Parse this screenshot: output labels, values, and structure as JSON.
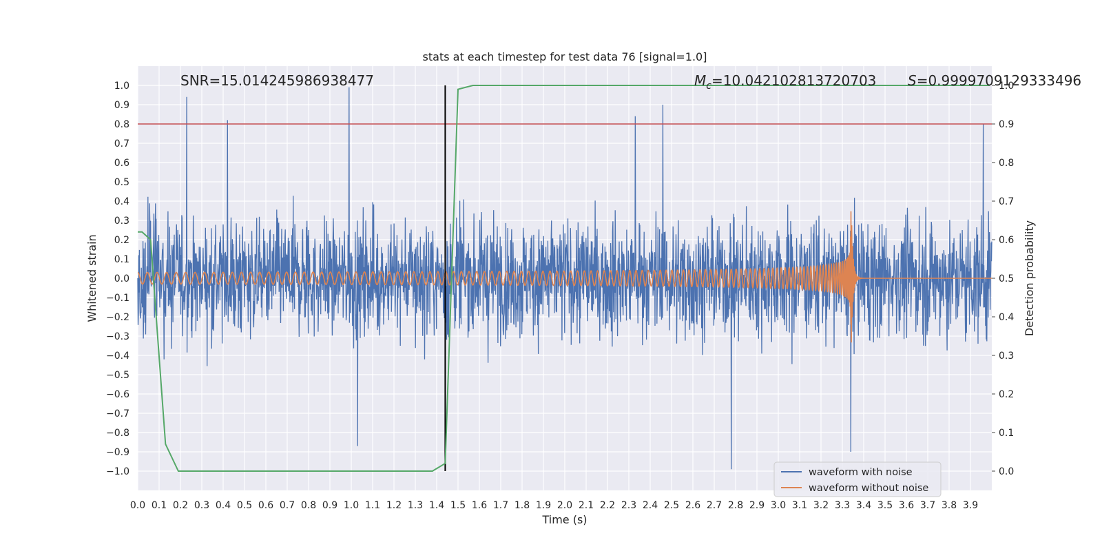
{
  "chart_data": {
    "type": "line",
    "title": "stats at each timestep for test data 76 [signal=1.0]",
    "xlabel": "Time (s)",
    "ylabel": "Whitened strain",
    "y2label": "Detection probability",
    "xlim": [
      0.0,
      4.0
    ],
    "ylim": [
      -1.1,
      1.1
    ],
    "y2lim": [
      -0.05,
      1.05
    ],
    "x_ticks": [
      0.0,
      0.1,
      0.2,
      0.3,
      0.4,
      0.5,
      0.6,
      0.7,
      0.8,
      0.9,
      1.0,
      1.1,
      1.2,
      1.3,
      1.4,
      1.5,
      1.6,
      1.7,
      1.8,
      1.9,
      2.0,
      2.1,
      2.2,
      2.3,
      2.4,
      2.5,
      2.6,
      2.7,
      2.8,
      2.9,
      3.0,
      3.1,
      3.2,
      3.3,
      3.4,
      3.5,
      3.6,
      3.7,
      3.8,
      3.9
    ],
    "y_ticks": [
      1.0,
      0.9,
      0.8,
      0.7,
      0.6,
      0.5,
      0.4,
      0.3,
      0.2,
      0.1,
      0.0,
      -0.1,
      -0.2,
      -0.3,
      -0.4,
      -0.5,
      -0.6,
      -0.7,
      -0.8,
      -0.9,
      -1.0
    ],
    "y2_ticks": [
      1.0,
      0.9,
      0.8,
      0.7,
      0.6,
      0.5,
      0.4,
      0.3,
      0.2,
      0.1,
      0.0
    ],
    "grid": true,
    "annotations": {
      "snr": "SNR=15.014245986938477",
      "mc_symbol": "M",
      "mc_sub": "c",
      "mc_value": "=10.042102813720703",
      "s_symbol": "S",
      "s_value": "=0.9999709129333496"
    },
    "threshold_line": {
      "y2": 0.9,
      "color": "#c44e52"
    },
    "vertical_line": {
      "x": 1.44,
      "y_range": [
        -1.0,
        1.0
      ],
      "color": "#000000"
    },
    "series": [
      {
        "name": "waveform with noise",
        "color": "#4c72b0",
        "description": "noisy whitened strain, amplitude roughly within ±1.0",
        "peaks": [
          {
            "x": 0.23,
            "y": 0.94
          },
          {
            "x": 0.99,
            "y": 0.99
          },
          {
            "x": 0.42,
            "y": 0.82
          },
          {
            "x": 2.33,
            "y": 0.84
          },
          {
            "x": 2.46,
            "y": 0.9
          },
          {
            "x": 2.78,
            "y": -0.99
          },
          {
            "x": 3.34,
            "y": -0.9
          },
          {
            "x": 3.96,
            "y": 0.8
          },
          {
            "x": 1.03,
            "y": -0.87
          }
        ]
      },
      {
        "name": "waveform without noise",
        "color": "#dd8452",
        "description": "chirp signal, amplitude 0.03 growing to ~0.45 peak at merger t=3.34 s, then ringdown to 0",
        "merger_time": 3.34,
        "amplitude_start": 0.03,
        "amplitude_peak": 0.45
      },
      {
        "name": "detection probability",
        "color": "#55a868",
        "axis": "y2",
        "x": [
          0.0,
          0.02,
          0.06,
          0.13,
          0.19,
          1.38,
          1.44,
          1.5,
          1.57,
          3.99
        ],
        "values": [
          0.62,
          0.62,
          0.6,
          0.07,
          0.0,
          0.0,
          0.02,
          0.99,
          1.0,
          1.0
        ]
      }
    ],
    "legend": {
      "position": "lower-right",
      "entries": [
        {
          "label": "waveform with noise",
          "color": "#4c72b0"
        },
        {
          "label": "waveform without noise",
          "color": "#dd8452"
        }
      ]
    }
  }
}
